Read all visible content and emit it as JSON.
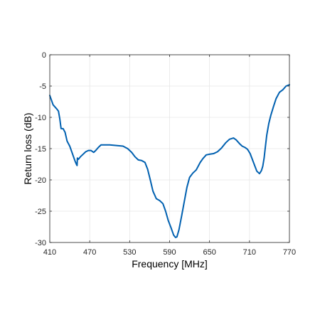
{
  "chart_data": {
    "type": "line",
    "title": "",
    "xlabel": "Frequency [MHz]",
    "ylabel": "Return loss (dB)",
    "xlim": [
      410,
      770
    ],
    "ylim": [
      -30,
      0
    ],
    "xticks": [
      410,
      470,
      530,
      590,
      650,
      710,
      770
    ],
    "yticks": [
      0,
      -5,
      -10,
      -15,
      -20,
      -25,
      -30
    ],
    "grid": true,
    "legend": "none",
    "colors": {
      "line": "#0060B0",
      "grid": "#e6e6e6",
      "axis": "#262626"
    },
    "series": [
      {
        "x": [
          410,
          415,
          420,
          423,
          425,
          427,
          430,
          433,
          436,
          440,
          444,
          448,
          450,
          451,
          451.5,
          453,
          456,
          460,
          464,
          468,
          472,
          476,
          479,
          483,
          487,
          492,
          500,
          510,
          520,
          527,
          533,
          538,
          543,
          548,
          553,
          557,
          561,
          565,
          570,
          575,
          580,
          584,
          588,
          592,
          596,
          599,
          601,
          604,
          608,
          612,
          616,
          620,
          625,
          630,
          636,
          640,
          645,
          650,
          656,
          662,
          668,
          674,
          680,
          686,
          690,
          695,
          699,
          703,
          707,
          711,
          716,
          721,
          725,
          728,
          730,
          732,
          734,
          736,
          739,
          742,
          746,
          750,
          755,
          760,
          765,
          770
        ],
        "y": [
          -6.5,
          -8.0,
          -8.6,
          -9.0,
          -10.2,
          -11.8,
          -11.8,
          -12.4,
          -13.8,
          -14.6,
          -15.8,
          -17.0,
          -17.5,
          -17.7,
          -16.5,
          -16.7,
          -16.3,
          -15.9,
          -15.5,
          -15.3,
          -15.3,
          -15.6,
          -15.3,
          -14.8,
          -14.4,
          -14.4,
          -14.4,
          -14.5,
          -14.6,
          -15.0,
          -15.6,
          -16.3,
          -16.8,
          -16.9,
          -17.2,
          -18.3,
          -20.0,
          -21.8,
          -23.0,
          -23.3,
          -23.8,
          -25.0,
          -26.5,
          -27.6,
          -28.8,
          -29.2,
          -29.1,
          -28.0,
          -25.8,
          -23.5,
          -21.2,
          -19.6,
          -18.9,
          -18.4,
          -17.2,
          -16.6,
          -16.0,
          -15.9,
          -15.8,
          -15.5,
          -14.9,
          -14.1,
          -13.5,
          -13.3,
          -13.6,
          -14.2,
          -14.6,
          -14.8,
          -15.1,
          -15.8,
          -17.2,
          -18.6,
          -19.0,
          -18.5,
          -17.8,
          -16.5,
          -14.6,
          -12.8,
          -11.0,
          -9.7,
          -8.3,
          -7.0,
          -6.0,
          -5.6,
          -5.0,
          -4.8
        ]
      }
    ]
  }
}
